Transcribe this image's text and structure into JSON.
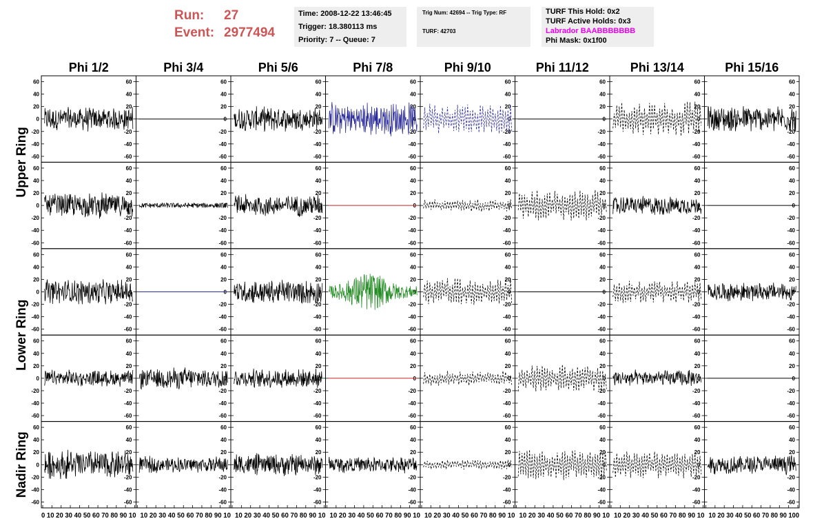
{
  "header": {
    "run_label": "Run:",
    "run_value": "27",
    "event_label": "Event:",
    "event_value": "2977494",
    "run_color": "#cc5555",
    "box1": [
      "Time: 2008-12-22 13:46:45",
      "Trigger: 18.380113 ms",
      "Priority: 7 -- Queue: 7"
    ],
    "box2": [
      "Trig Num: 42694 -- Trig Type: RF",
      "TURF: 42703"
    ],
    "box3": [
      "TURF This Hold: 0x2",
      "TURF Active Holds: 0x3",
      "Labrador BAABBBBBBB",
      "Phi Mask: 0x1f00"
    ],
    "highlight_color": "#ee00ee"
  },
  "chart_data": {
    "type": "line",
    "columns": [
      "Phi 1/2",
      "Phi 3/4",
      "Phi 5/6",
      "Phi 7/8",
      "Phi 9/10",
      "Phi 11/12",
      "Phi 13/14",
      "Phi 15/16"
    ],
    "ring_labels": [
      "Upper Ring",
      "Lower Ring",
      "Nadir Ring"
    ],
    "panel_rows": 5,
    "ylim": [
      -65,
      65
    ],
    "y_ticks": [
      -60,
      -40,
      -20,
      0,
      20,
      40,
      60
    ],
    "xlim": [
      0,
      100
    ],
    "x_ticks": [
      0,
      10,
      20,
      30,
      40,
      50,
      60,
      70,
      80,
      90,
      100
    ],
    "x_tick_text": [
      "0 10 20 30 40 50 60 70 80 90 10",
      "10 20 30 40 50 60 70 80 90 10",
      "10 20 30 40 50 60 70 80 90 10",
      "10 20 30 40 50 60 70 80 90 10",
      "10 20 30 40 50 60 70 80 90 10",
      "10 20 30 40 50 60 70 80 90 10",
      "10 20 30 40 50 60 70 80 90 10",
      "10 20 30 40 50 60 70 80 90 100"
    ],
    "colors": {
      "black": "#000000",
      "blue": "#2c2c9a",
      "green": "#228b22",
      "red": "#cc2222"
    },
    "panels": [
      [
        {
          "style": "noise",
          "amp": 18,
          "color": "black"
        },
        {
          "style": "flat",
          "color": "black"
        },
        {
          "style": "noise",
          "amp": 18,
          "color": "black"
        },
        {
          "style": "noise",
          "amp": 25,
          "color": "blue"
        },
        {
          "style": "dashed",
          "amp": 25,
          "color": "blue"
        },
        {
          "style": "flat",
          "color": "black"
        },
        {
          "style": "dashed",
          "amp": 28,
          "color": "black"
        },
        {
          "style": "noise",
          "amp": 20,
          "color": "black"
        }
      ],
      [
        {
          "style": "noise",
          "amp": 18,
          "color": "black"
        },
        {
          "style": "small",
          "amp": 4,
          "color": "black"
        },
        {
          "style": "noise",
          "amp": 16,
          "color": "black"
        },
        {
          "style": "flat",
          "color": "red"
        },
        {
          "style": "dashed",
          "amp": 10,
          "color": "black"
        },
        {
          "style": "dashed",
          "amp": 25,
          "color": "black"
        },
        {
          "style": "noise",
          "amp": 14,
          "color": "black"
        },
        {
          "style": "flat",
          "color": "black"
        }
      ],
      [
        {
          "style": "noise",
          "amp": 18,
          "color": "black"
        },
        {
          "style": "flat",
          "color": "blue"
        },
        {
          "style": "noise",
          "amp": 18,
          "color": "black"
        },
        {
          "style": "burst",
          "amp": 25,
          "color": "green"
        },
        {
          "style": "dashed",
          "amp": 22,
          "color": "black"
        },
        {
          "style": "flat",
          "color": "black"
        },
        {
          "style": "dashed",
          "amp": 18,
          "color": "black"
        },
        {
          "style": "noise",
          "amp": 14,
          "color": "black"
        }
      ],
      [
        {
          "style": "noise",
          "amp": 12,
          "color": "black"
        },
        {
          "style": "noise",
          "amp": 16,
          "color": "black"
        },
        {
          "style": "noise",
          "amp": 14,
          "color": "black"
        },
        {
          "style": "flat",
          "color": "red"
        },
        {
          "style": "dashed",
          "amp": 12,
          "color": "black"
        },
        {
          "style": "dashed",
          "amp": 22,
          "color": "black"
        },
        {
          "style": "noise",
          "amp": 12,
          "color": "black"
        },
        {
          "style": "flat",
          "color": "black"
        }
      ],
      [
        {
          "style": "noise",
          "amp": 22,
          "color": "black"
        },
        {
          "style": "noise",
          "amp": 12,
          "color": "black"
        },
        {
          "style": "noise",
          "amp": 16,
          "color": "black"
        },
        {
          "style": "noise",
          "amp": 12,
          "color": "black"
        },
        {
          "style": "dashed",
          "amp": 8,
          "color": "black"
        },
        {
          "style": "dashed",
          "amp": 25,
          "color": "black"
        },
        {
          "style": "dashed",
          "amp": 22,
          "color": "black"
        },
        {
          "style": "noise",
          "amp": 14,
          "color": "black"
        }
      ]
    ]
  }
}
